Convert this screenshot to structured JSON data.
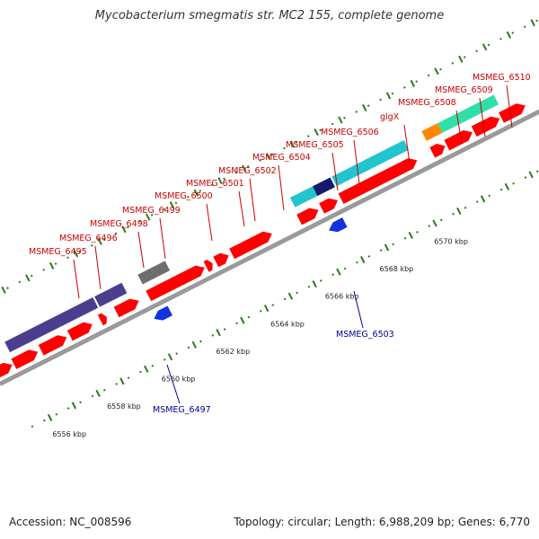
{
  "title": "Mycobacterium smegmatis str. MC2 155, complete genome",
  "footer": {
    "accession": "Accession: NC_008596",
    "topology": "Topology: circular; Length: 6,988,209 bp; Genes: 6,770"
  },
  "ticks": [
    {
      "label": "6556 kbp",
      "kbp": 6556
    },
    {
      "label": "6558 kbp",
      "kbp": 6558
    },
    {
      "label": "6560 kbp",
      "kbp": 6560
    },
    {
      "label": "6562 kbp",
      "kbp": 6562
    },
    {
      "label": "6564 kbp",
      "kbp": 6564
    },
    {
      "label": "6566 kbp",
      "kbp": 6566
    },
    {
      "label": "6568 kbp",
      "kbp": 6568
    },
    {
      "label": "6570 kbp",
      "kbp": 6570
    }
  ],
  "forward_gene_labels": [
    "MSMEG_6495",
    "MSMEG_6496",
    "MSMEG_6498",
    "MSMEG_6499",
    "MSMEG_6500",
    "MSMEG_6501",
    "MSMEG_6502",
    "MSMEG_6504",
    "MSMEG_6505",
    "MSMEG_6506",
    "glgX",
    "MSMEG_6508",
    "MSMEG_6509",
    "MSMEG_6510"
  ],
  "reverse_gene_labels": [
    "MSMEG_6497",
    "MSMEG_6503"
  ],
  "colors": {
    "forward_label": "#cc0000",
    "reverse_label": "#000099",
    "forward_gene": "#ff0000",
    "reverse_gene": "#1133dd",
    "backbone": "#9a9a9a",
    "tick": "#2a7a1a",
    "cog_purple": "#4a3f8f",
    "cog_gray": "#6e6e6e",
    "cog_cyan": "#22c5cf",
    "cog_teal": "#2ee0a8",
    "cog_orange": "#ff8800",
    "cog_navy": "#141a6e",
    "cog_green": "#22bb22"
  }
}
